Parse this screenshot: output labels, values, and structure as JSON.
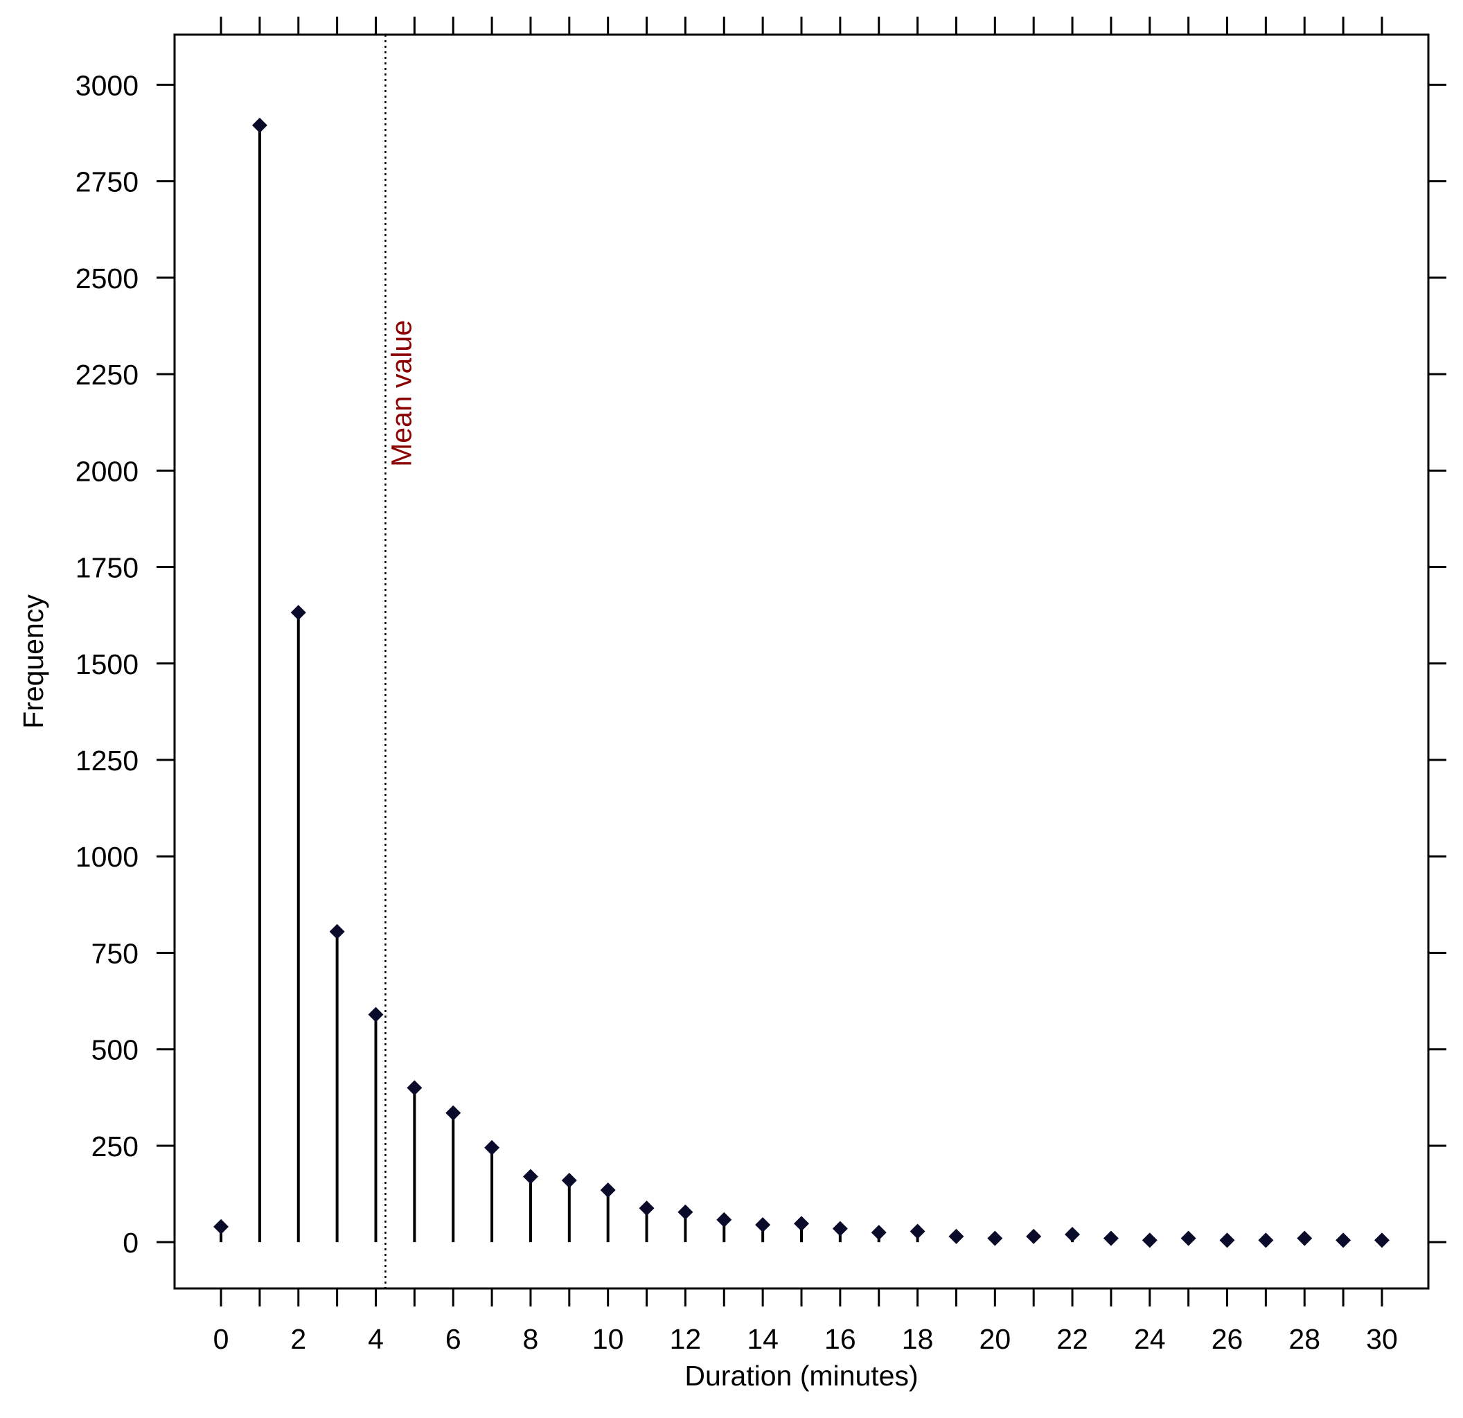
{
  "chart_data": {
    "type": "scatter",
    "style": "stem",
    "title": "",
    "xlabel": "Duration (minutes)",
    "ylabel": "Frequency",
    "xlim": [
      -1.2,
      31.2
    ],
    "ylim": [
      -120,
      3130
    ],
    "x_ticks": [
      0,
      2,
      4,
      6,
      8,
      10,
      12,
      14,
      16,
      18,
      20,
      22,
      24,
      26,
      28,
      30
    ],
    "x_tick_labels": [
      "0",
      "2",
      "4",
      "6",
      "8",
      "10",
      "12",
      "14",
      "16",
      "18",
      "20",
      "22",
      "24",
      "26",
      "28",
      "30"
    ],
    "y_ticks": [
      0,
      250,
      500,
      750,
      1000,
      1250,
      1500,
      1750,
      2000,
      2250,
      2500,
      2750,
      3000
    ],
    "y_tick_labels": [
      "0",
      "250",
      "500",
      "750",
      "1000",
      "1250",
      "1500",
      "1750",
      "2000",
      "2250",
      "2500",
      "2750",
      "3000"
    ],
    "grid": false,
    "marker": "diamond",
    "series": [
      {
        "x": [
          0,
          1,
          2,
          3,
          4,
          5,
          6,
          7,
          8,
          9,
          10,
          11,
          12,
          13,
          14,
          15,
          16,
          17,
          18,
          19,
          20,
          21,
          22,
          23,
          24,
          25,
          26,
          27,
          28,
          29,
          30
        ],
        "values": [
          40,
          2895,
          1632,
          805,
          590,
          400,
          335,
          245,
          170,
          160,
          135,
          88,
          78,
          58,
          45,
          48,
          35,
          25,
          28,
          15,
          10,
          15,
          20,
          10,
          5,
          10,
          5,
          5,
          10,
          5,
          5
        ],
        "color": "#000000",
        "marker_color": "#0a0a2a"
      }
    ],
    "annotations": [
      {
        "type": "vline",
        "x": 4.25,
        "label": "Mean value",
        "line_color": "#000000",
        "label_color": "#8b0000",
        "line_style": "dotted"
      }
    ]
  }
}
